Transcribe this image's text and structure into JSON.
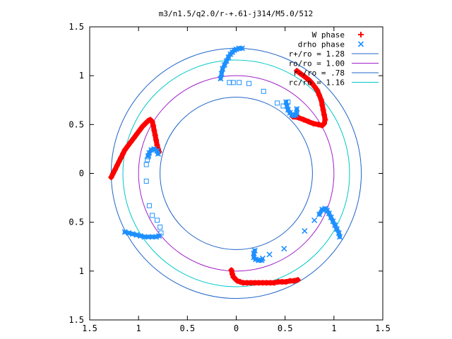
{
  "chart_data": {
    "type": "scatter",
    "title": "m3/n1.5/q2.0/r-+.61-j314/M5.0/512",
    "xlim": [
      -1.5,
      1.5
    ],
    "ylim": [
      -1.5,
      1.5
    ],
    "x_ticks": [
      {
        "value": -1.5,
        "label": "1.5"
      },
      {
        "value": -1.0,
        "label": "1"
      },
      {
        "value": -0.5,
        "label": "0.5"
      },
      {
        "value": 0.0,
        "label": "0"
      },
      {
        "value": 0.5,
        "label": "0.5"
      },
      {
        "value": 1.0,
        "label": "1"
      },
      {
        "value": 1.5,
        "label": "1.5"
      }
    ],
    "y_ticks": [
      {
        "value": 1.5,
        "label": "1.5"
      },
      {
        "value": 1.0,
        "label": "1"
      },
      {
        "value": 0.5,
        "label": "0.5"
      },
      {
        "value": 0.0,
        "label": "0"
      },
      {
        "value": -0.5,
        "label": "0.5"
      },
      {
        "value": -1.0,
        "label": "1"
      },
      {
        "value": -1.5,
        "label": "1.5"
      }
    ],
    "grid": false,
    "legend_position": "top-right",
    "circles": [
      {
        "name": "r+/ro = 1.28",
        "radius": 1.28,
        "color": "#1f64c8"
      },
      {
        "name": "ro/ro = 1.00",
        "radius": 1.0,
        "color": "#a020c8"
      },
      {
        "name": "r-/ro = .78",
        "radius": 0.78,
        "color": "#1f64c8"
      },
      {
        "name": "rc/ro = 1.16",
        "radius": 1.16,
        "color": "#00c8c8"
      }
    ],
    "series": [
      {
        "name": "W phase",
        "marker": "plus",
        "color": "#ff0000",
        "points": [
          [
            -1.28,
            -0.04
          ],
          [
            -1.26,
            0.0
          ],
          [
            -1.24,
            0.04
          ],
          [
            -1.22,
            0.08
          ],
          [
            -1.2,
            0.12
          ],
          [
            -1.18,
            0.16
          ],
          [
            -1.16,
            0.2
          ],
          [
            -1.14,
            0.24
          ],
          [
            -1.11,
            0.28
          ],
          [
            -1.08,
            0.32
          ],
          [
            -1.05,
            0.36
          ],
          [
            -1.02,
            0.4
          ],
          [
            -0.99,
            0.44
          ],
          [
            -0.96,
            0.48
          ],
          [
            -0.93,
            0.51
          ],
          [
            -0.9,
            0.54
          ],
          [
            -0.88,
            0.55
          ],
          [
            -0.86,
            0.53
          ],
          [
            -0.85,
            0.49
          ],
          [
            -0.84,
            0.44
          ],
          [
            -0.83,
            0.39
          ],
          [
            -0.82,
            0.34
          ],
          [
            -0.81,
            0.29
          ],
          [
            -0.8,
            0.25
          ],
          [
            -0.79,
            0.22
          ],
          [
            0.62,
            1.05
          ],
          [
            0.66,
            1.02
          ],
          [
            0.7,
            0.99
          ],
          [
            0.74,
            0.96
          ],
          [
            0.77,
            0.93
          ],
          [
            0.8,
            0.89
          ],
          [
            0.83,
            0.85
          ],
          [
            0.85,
            0.8
          ],
          [
            0.87,
            0.75
          ],
          [
            0.88,
            0.7
          ],
          [
            0.89,
            0.65
          ],
          [
            0.9,
            0.6
          ],
          [
            0.91,
            0.55
          ],
          [
            0.9,
            0.51
          ],
          [
            0.88,
            0.49
          ],
          [
            0.84,
            0.5
          ],
          [
            0.79,
            0.51
          ],
          [
            0.74,
            0.53
          ],
          [
            0.69,
            0.55
          ],
          [
            0.64,
            0.57
          ],
          [
            0.6,
            0.58
          ],
          [
            0.58,
            0.58
          ],
          [
            -0.05,
            -0.99
          ],
          [
            -0.04,
            -1.03
          ],
          [
            -0.03,
            -1.06
          ],
          [
            -0.01,
            -1.08
          ],
          [
            0.01,
            -1.1
          ],
          [
            0.04,
            -1.11
          ],
          [
            0.07,
            -1.12
          ],
          [
            0.11,
            -1.12
          ],
          [
            0.15,
            -1.12
          ],
          [
            0.19,
            -1.12
          ],
          [
            0.23,
            -1.12
          ],
          [
            0.27,
            -1.12
          ],
          [
            0.31,
            -1.12
          ],
          [
            0.35,
            -1.12
          ],
          [
            0.39,
            -1.12
          ],
          [
            0.43,
            -1.11
          ],
          [
            0.47,
            -1.11
          ],
          [
            0.51,
            -1.11
          ],
          [
            0.55,
            -1.1
          ],
          [
            0.59,
            -1.1
          ],
          [
            0.63,
            -1.09
          ]
        ]
      },
      {
        "name": "drho phase",
        "marker": "x",
        "color": "#1e90ff",
        "points": [
          [
            -0.16,
            0.97
          ],
          [
            -0.15,
            1.02
          ],
          [
            -0.14,
            1.07
          ],
          [
            -0.12,
            1.11
          ],
          [
            -0.1,
            1.15
          ],
          [
            -0.08,
            1.19
          ],
          [
            -0.06,
            1.22
          ],
          [
            -0.04,
            1.24
          ],
          [
            -0.02,
            1.26
          ],
          [
            0.0,
            1.27
          ],
          [
            0.03,
            1.28
          ],
          [
            0.06,
            1.28
          ],
          [
            0.51,
            0.73
          ],
          [
            0.52,
            0.69
          ],
          [
            0.53,
            0.65
          ],
          [
            0.55,
            0.62
          ],
          [
            0.57,
            0.6
          ],
          [
            0.59,
            0.59
          ],
          [
            0.61,
            0.6
          ],
          [
            0.62,
            0.62
          ],
          [
            0.62,
            0.66
          ],
          [
            -0.8,
            0.2
          ],
          [
            -0.81,
            0.23
          ],
          [
            -0.84,
            0.25
          ],
          [
            -0.87,
            0.24
          ],
          [
            -0.89,
            0.21
          ],
          [
            -0.9,
            0.18
          ],
          [
            -1.14,
            -0.6
          ],
          [
            -1.1,
            -0.61
          ],
          [
            -1.06,
            -0.62
          ],
          [
            -1.02,
            -0.63
          ],
          [
            -0.98,
            -0.64
          ],
          [
            -0.94,
            -0.65
          ],
          [
            -0.9,
            -0.65
          ],
          [
            -0.86,
            -0.65
          ],
          [
            -0.82,
            -0.65
          ],
          [
            -0.79,
            -0.64
          ],
          [
            0.19,
            -0.79
          ],
          [
            0.18,
            -0.82
          ],
          [
            0.18,
            -0.86
          ],
          [
            0.2,
            -0.88
          ],
          [
            0.23,
            -0.89
          ],
          [
            0.26,
            -0.89
          ],
          [
            0.85,
            -0.42
          ],
          [
            0.88,
            -0.37
          ],
          [
            0.91,
            -0.36
          ],
          [
            0.93,
            -0.38
          ],
          [
            0.95,
            -0.41
          ],
          [
            0.97,
            -0.45
          ],
          [
            0.99,
            -0.49
          ],
          [
            1.01,
            -0.53
          ],
          [
            1.03,
            -0.57
          ],
          [
            1.05,
            -0.61
          ],
          [
            1.06,
            -0.65
          ],
          [
            0.27,
            -0.87
          ],
          [
            0.34,
            -0.83
          ],
          [
            0.49,
            -0.77
          ],
          [
            0.7,
            -0.59
          ],
          [
            0.8,
            -0.48
          ]
        ]
      }
    ],
    "sparse_squares": [
      [
        -0.07,
        0.93
      ],
      [
        -0.03,
        0.93
      ],
      [
        0.03,
        0.93
      ],
      [
        0.13,
        0.92
      ],
      [
        0.28,
        0.84
      ],
      [
        0.42,
        0.72
      ],
      [
        0.48,
        0.69
      ],
      [
        0.53,
        0.73
      ],
      [
        -0.92,
        0.09
      ],
      [
        -0.92,
        -0.08
      ],
      [
        -0.89,
        -0.33
      ],
      [
        -0.86,
        -0.43
      ],
      [
        -0.81,
        -0.48
      ],
      [
        -0.78,
        -0.55
      ],
      [
        -0.77,
        -0.61
      ],
      [
        -0.91,
        0.14
      ],
      [
        -0.9,
        0.17
      ]
    ]
  }
}
